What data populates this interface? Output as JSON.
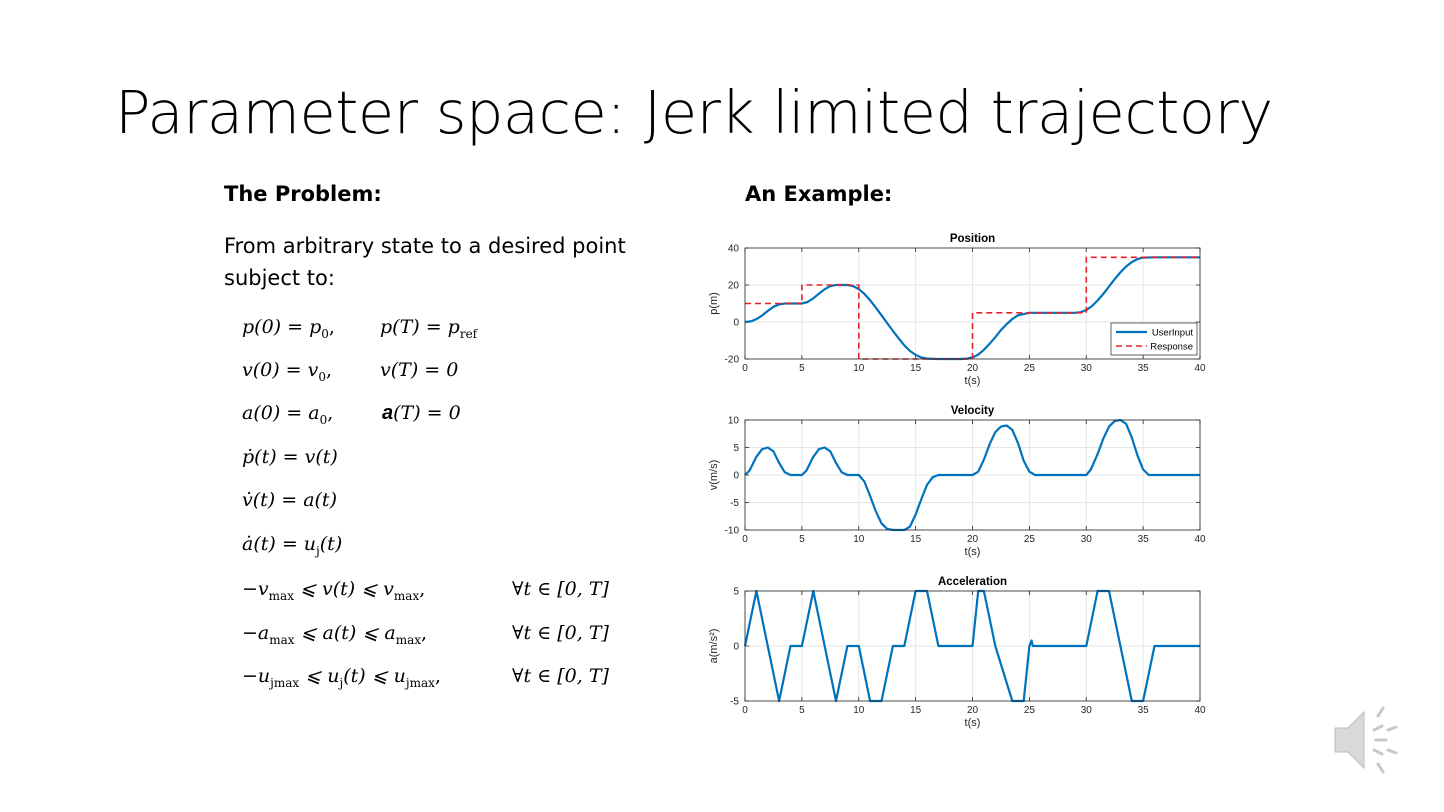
{
  "slide": {
    "title": "Parameter space: Jerk limited trajectory",
    "left_heading": "The Problem:",
    "right_heading": "An Example:",
    "intro": "From arbitrary state to a desired point subject to:"
  },
  "equations": [
    {
      "left": "p(0) = p",
      "left_sub": "0",
      "left_tail": ",",
      "right": "p(T) = p",
      "right_sub": "ref",
      "right_tail": ""
    },
    {
      "left": "v(0) = v",
      "left_sub": "0",
      "left_tail": ",",
      "right": "v(T) = 0",
      "right_sub": "",
      "right_tail": ""
    },
    {
      "left": "a(0) = a",
      "left_sub": "0",
      "left_tail": ",",
      "right_prefix": "a",
      "right": "(T) = 0",
      "right_sub": "",
      "right_tail": ""
    },
    {
      "left": "ṗ(t) = v(t)"
    },
    {
      "left": "v̇(t) = a(t)"
    },
    {
      "left": "ȧ(t) = u",
      "left_sub": "j",
      "left_tail": "(t)"
    },
    {
      "left": "−v",
      "left_sub": "max",
      "left_tail": " ⩽ v(t) ⩽ v",
      "left_sub2": "max",
      "left_tail2": ",",
      "right": "∀t ∈ [0, T]"
    },
    {
      "left": "−a",
      "left_sub": "max",
      "left_tail": " ⩽ a(t) ⩽ a",
      "left_sub2": "max",
      "left_tail2": ",",
      "right": "∀t ∈ [0, T]"
    },
    {
      "left": "−u",
      "left_sub": "jmax",
      "left_tail": " ⩽ u",
      "left_sub2": "j",
      "left_tail2": "(t) ⩽ u",
      "left_sub3": "jmax",
      "left_tail3": ",",
      "right": "∀t ∈ [0, T]"
    }
  ],
  "colors": {
    "user_input": "#0072BD",
    "response": "#E8202A"
  },
  "chart_data": [
    {
      "type": "line",
      "title": "Position",
      "xlabel": "t(s)",
      "ylabel": "p(m)",
      "xlim": [
        0,
        40
      ],
      "ylim": [
        -20,
        40
      ],
      "xticks": [
        0,
        5,
        10,
        15,
        20,
        25,
        30,
        35,
        40
      ],
      "yticks": [
        -20,
        0,
        20,
        40
      ],
      "grid": true,
      "legend": "bottom-right",
      "series": [
        {
          "name": "UserInput",
          "style": "solid",
          "x": [
            0,
            0.5,
            1,
            1.5,
            2,
            2.5,
            3,
            3.5,
            4,
            5,
            5.5,
            6,
            6.5,
            7,
            7.5,
            8,
            9,
            9.5,
            10,
            10.5,
            11,
            11.5,
            12,
            12.5,
            13,
            13.5,
            14,
            14.5,
            15,
            15.5,
            16,
            17,
            18,
            19,
            19.5,
            20,
            20.5,
            21,
            21.5,
            22,
            22.5,
            23,
            23.5,
            24,
            25,
            26,
            27,
            28,
            29,
            29.5,
            30,
            30.5,
            31,
            31.5,
            32,
            32.5,
            33,
            33.5,
            34,
            34.5,
            35,
            36,
            37,
            38,
            39,
            40
          ],
          "y": [
            0,
            0.3,
            1.5,
            3.5,
            6,
            8.2,
            9.5,
            10,
            10,
            10,
            10.8,
            12.8,
            15.3,
            17.7,
            19.4,
            20,
            20,
            19.4,
            17.8,
            15.2,
            11.8,
            7.8,
            3.6,
            -0.6,
            -4.8,
            -8.8,
            -12.6,
            -15.6,
            -17.8,
            -19.2,
            -19.8,
            -20,
            -20,
            -20,
            -19.8,
            -19.2,
            -17.6,
            -15,
            -11.8,
            -8.2,
            -4.4,
            -1.2,
            1.6,
            3.6,
            5,
            5,
            5,
            5,
            5,
            5.3,
            6.5,
            8.6,
            11.6,
            15.2,
            19.2,
            23.2,
            26.8,
            30,
            32.4,
            34,
            34.8,
            35,
            35,
            35,
            35,
            35
          ]
        },
        {
          "name": "Response",
          "style": "dashed",
          "x": [
            0,
            5,
            5,
            10,
            10,
            20,
            20,
            30,
            30,
            40
          ],
          "y": [
            10,
            10,
            20,
            20,
            -20,
            -20,
            5,
            5,
            35,
            35
          ]
        }
      ]
    },
    {
      "type": "line",
      "title": "Velocity",
      "xlabel": "t(s)",
      "ylabel": "v(m/s)",
      "xlim": [
        0,
        40
      ],
      "ylim": [
        -10,
        10
      ],
      "xticks": [
        0,
        5,
        10,
        15,
        20,
        25,
        30,
        35,
        40
      ],
      "yticks": [
        -10,
        -5,
        0,
        5,
        10
      ],
      "grid": true,
      "series": [
        {
          "name": "UserInput",
          "style": "solid",
          "x": [
            0,
            0.4,
            1,
            1.5,
            2,
            2.5,
            3,
            3.5,
            4,
            5,
            5.4,
            6,
            6.5,
            7,
            7.5,
            8,
            8.5,
            9,
            10,
            10.5,
            11,
            11.5,
            12,
            12.5,
            13,
            14,
            14.5,
            15,
            15.5,
            16,
            16.5,
            17,
            20,
            20.5,
            21,
            21.5,
            22,
            22.5,
            23,
            23.5,
            24,
            24.5,
            25,
            25.5,
            30,
            30.4,
            31,
            31.5,
            32,
            32.5,
            33,
            33.5,
            34,
            34.5,
            35,
            35.5,
            40
          ],
          "y": [
            0,
            0.8,
            3.3,
            4.7,
            5,
            4.3,
            2.2,
            0.5,
            0,
            0,
            0.8,
            3.3,
            4.7,
            5,
            4.3,
            2.2,
            0.5,
            0,
            0,
            -1.2,
            -3.8,
            -6.6,
            -8.8,
            -9.8,
            -10,
            -10,
            -9.4,
            -7.2,
            -4.4,
            -1.8,
            -0.4,
            0,
            0,
            0.6,
            2.8,
            5.6,
            7.8,
            8.8,
            9,
            8.2,
            5.8,
            2.6,
            0.6,
            0,
            0,
            1,
            3.8,
            6.6,
            8.8,
            9.8,
            10,
            9.3,
            6.8,
            3.6,
            1,
            0,
            0
          ]
        }
      ]
    },
    {
      "type": "line",
      "title": "Acceleration",
      "xlabel": "t(s)",
      "ylabel": "a(m/s²)",
      "xlim": [
        0,
        40
      ],
      "ylim": [
        -5,
        5
      ],
      "xticks": [
        0,
        5,
        10,
        15,
        20,
        25,
        30,
        35,
        40
      ],
      "yticks": [
        -5,
        0,
        5
      ],
      "grid": true,
      "series": [
        {
          "name": "UserInput",
          "style": "solid",
          "x": [
            0,
            1,
            3,
            4,
            5,
            6,
            8,
            9,
            10,
            11,
            12,
            13,
            14,
            15,
            15.5,
            16,
            17,
            19,
            20,
            20.5,
            21,
            22,
            23.5,
            24,
            24.5,
            25,
            25.2,
            25.3,
            26,
            29,
            30,
            31,
            32,
            33,
            34,
            35,
            36,
            40
          ],
          "y": [
            0,
            5,
            -5,
            0,
            0,
            5,
            -5,
            0,
            0,
            -5,
            -5,
            0,
            0,
            5,
            5,
            5,
            0,
            0,
            0,
            5,
            5,
            0,
            -5,
            -5,
            -5,
            0,
            0.5,
            0,
            0,
            0,
            0,
            5,
            5,
            0,
            -5,
            -5,
            0,
            0
          ]
        }
      ]
    }
  ]
}
